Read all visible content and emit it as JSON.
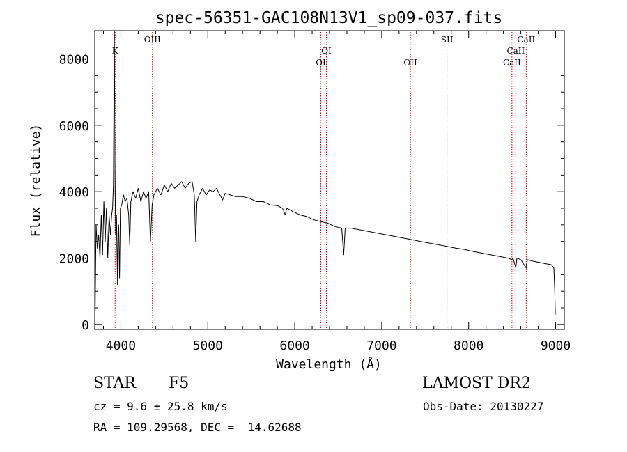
{
  "chart_data": {
    "type": "line",
    "title": "spec-56351-GAC108N13V1_sp09-037.fits",
    "xlabel": "Wavelength (Å)",
    "ylabel": "Flux (relative)",
    "xlim": [
      3700,
      9100
    ],
    "ylim": [
      -150,
      8850
    ],
    "xticks": [
      4000,
      5000,
      6000,
      7000,
      8000,
      9000
    ],
    "yticks": [
      0,
      2000,
      4000,
      6000,
      8000
    ],
    "grid": false,
    "series": [
      {
        "name": "flux",
        "points": [
          [
            3700,
            2900
          ],
          [
            3705,
            400
          ],
          [
            3715,
            3000
          ],
          [
            3730,
            2300
          ],
          [
            3745,
            2700
          ],
          [
            3760,
            2000
          ],
          [
            3775,
            3300
          ],
          [
            3790,
            2100
          ],
          [
            3805,
            3700
          ],
          [
            3820,
            2500
          ],
          [
            3835,
            3500
          ],
          [
            3850,
            2000
          ],
          [
            3865,
            3300
          ],
          [
            3880,
            2700
          ],
          [
            3895,
            3300
          ],
          [
            3905,
            3500
          ],
          [
            3915,
            4200
          ],
          [
            3925,
            8850
          ],
          [
            3933,
            4500
          ],
          [
            3940,
            2700
          ],
          [
            3950,
            3300
          ],
          [
            3962,
            1200
          ],
          [
            3968,
            3000
          ],
          [
            3975,
            3000
          ],
          [
            3985,
            1400
          ],
          [
            3995,
            3500
          ],
          [
            4010,
            3600
          ],
          [
            4030,
            3900
          ],
          [
            4050,
            3700
          ],
          [
            4070,
            3800
          ],
          [
            4090,
            3300
          ],
          [
            4102,
            2400
          ],
          [
            4115,
            3700
          ],
          [
            4140,
            4000
          ],
          [
            4170,
            3800
          ],
          [
            4200,
            4100
          ],
          [
            4230,
            3700
          ],
          [
            4260,
            4000
          ],
          [
            4290,
            3800
          ],
          [
            4320,
            4000
          ],
          [
            4340,
            2500
          ],
          [
            4360,
            3600
          ],
          [
            4380,
            3900
          ],
          [
            4420,
            4100
          ],
          [
            4460,
            3900
          ],
          [
            4500,
            4200
          ],
          [
            4540,
            4000
          ],
          [
            4580,
            4250
          ],
          [
            4620,
            4100
          ],
          [
            4660,
            4200
          ],
          [
            4700,
            4300
          ],
          [
            4740,
            4100
          ],
          [
            4780,
            4250
          ],
          [
            4820,
            4300
          ],
          [
            4845,
            3900
          ],
          [
            4861,
            2500
          ],
          [
            4875,
            3700
          ],
          [
            4900,
            3900
          ],
          [
            4940,
            4100
          ],
          [
            4980,
            3900
          ],
          [
            5020,
            4050
          ],
          [
            5060,
            4000
          ],
          [
            5100,
            4100
          ],
          [
            5140,
            3900
          ],
          [
            5170,
            3750
          ],
          [
            5200,
            3950
          ],
          [
            5260,
            3900
          ],
          [
            5320,
            3850
          ],
          [
            5400,
            3850
          ],
          [
            5480,
            3800
          ],
          [
            5560,
            3700
          ],
          [
            5640,
            3700
          ],
          [
            5720,
            3600
          ],
          [
            5800,
            3580
          ],
          [
            5860,
            3500
          ],
          [
            5890,
            3300
          ],
          [
            5910,
            3500
          ],
          [
            5980,
            3400
          ],
          [
            6060,
            3300
          ],
          [
            6140,
            3250
          ],
          [
            6220,
            3150
          ],
          [
            6300,
            3100
          ],
          [
            6380,
            3050
          ],
          [
            6460,
            2950
          ],
          [
            6540,
            2900
          ],
          [
            6563,
            2100
          ],
          [
            6580,
            2900
          ],
          [
            6650,
            2900
          ],
          [
            6750,
            2850
          ],
          [
            6850,
            2800
          ],
          [
            6950,
            2750
          ],
          [
            7050,
            2700
          ],
          [
            7150,
            2650
          ],
          [
            7250,
            2600
          ],
          [
            7350,
            2550
          ],
          [
            7450,
            2500
          ],
          [
            7550,
            2450
          ],
          [
            7650,
            2400
          ],
          [
            7750,
            2350
          ],
          [
            7850,
            2300
          ],
          [
            7950,
            2260
          ],
          [
            8050,
            2200
          ],
          [
            8150,
            2150
          ],
          [
            8250,
            2100
          ],
          [
            8350,
            2050
          ],
          [
            8450,
            2000
          ],
          [
            8498,
            1950
          ],
          [
            8510,
            2000
          ],
          [
            8542,
            1700
          ],
          [
            8555,
            2000
          ],
          [
            8600,
            1950
          ],
          [
            8662,
            1700
          ],
          [
            8675,
            1950
          ],
          [
            8750,
            1900
          ],
          [
            8850,
            1850
          ],
          [
            8950,
            1800
          ],
          [
            8980,
            1700
          ],
          [
            8990,
            1000
          ],
          [
            8997,
            300
          ]
        ]
      }
    ],
    "lines": [
      {
        "label": "K",
        "wavelength": 3934,
        "row": 2
      },
      {
        "label": "OIII",
        "wavelength": 4363,
        "row": 1
      },
      {
        "label": "OI",
        "wavelength": 6300,
        "row": 4
      },
      {
        "label": "OI",
        "wavelength": 6364,
        "row": 3
      },
      {
        "label": "OII",
        "wavelength": 7330,
        "row": 4
      },
      {
        "label": "SII",
        "wavelength": 7751,
        "row": 1
      },
      {
        "label": "CaII",
        "wavelength": 8498,
        "row": 4
      },
      {
        "label": "CaII",
        "wavelength": 8542,
        "row": 3
      },
      {
        "label": "CaII",
        "wavelength": 8662,
        "row": 1
      }
    ],
    "line_color": "#000000",
    "marker_color": "#c00000"
  },
  "info": {
    "object_class": "STAR",
    "subclass": "F5",
    "survey": "LAMOST DR2",
    "redshift": "cz = 9.6 ± 25.8 km/s",
    "obs_date": "Obs-Date: 20130227",
    "coords": "RA = 109.29568, DEC =  14.62688"
  }
}
